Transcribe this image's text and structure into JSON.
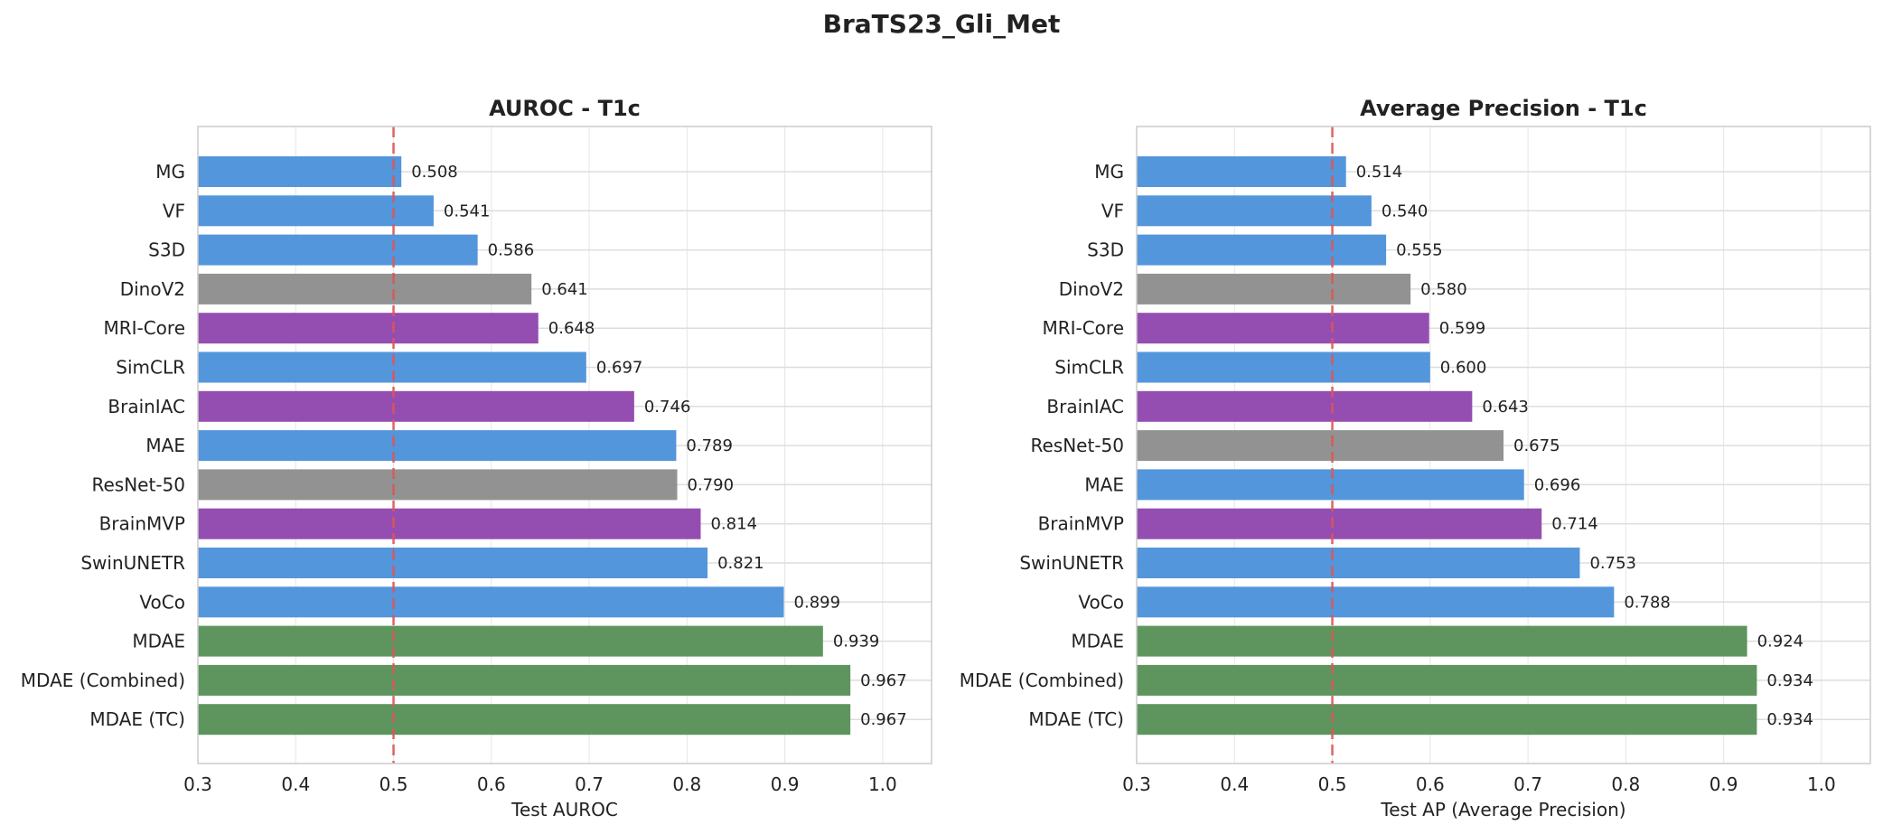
{
  "figure_title": "BraTS23_Gli_Met",
  "colors": {
    "blue": "#4a90d9",
    "gray": "#8c8c8c",
    "purple": "#8e44ad",
    "green": "#558f55",
    "reference_line": "#e05555"
  },
  "chart_data": [
    {
      "type": "bar",
      "orientation": "horizontal",
      "title": "AUROC - T1c",
      "xlabel": "Test AUROC",
      "xlim": [
        0.3,
        1.05
      ],
      "xticks": [
        "0.3",
        "0.4",
        "0.5",
        "0.6",
        "0.7",
        "0.8",
        "0.9",
        "1.0"
      ],
      "reference_line": 0.5,
      "grid": true,
      "bars": [
        {
          "label": "MG",
          "value": 0.508,
          "value_label": "0.508",
          "color": "blue"
        },
        {
          "label": "VF",
          "value": 0.541,
          "value_label": "0.541",
          "color": "blue"
        },
        {
          "label": "S3D",
          "value": 0.586,
          "value_label": "0.586",
          "color": "blue"
        },
        {
          "label": "DinoV2",
          "value": 0.641,
          "value_label": "0.641",
          "color": "gray"
        },
        {
          "label": "MRI-Core",
          "value": 0.648,
          "value_label": "0.648",
          "color": "purple"
        },
        {
          "label": "SimCLR",
          "value": 0.697,
          "value_label": "0.697",
          "color": "blue"
        },
        {
          "label": "BrainIAC",
          "value": 0.746,
          "value_label": "0.746",
          "color": "purple"
        },
        {
          "label": "MAE",
          "value": 0.789,
          "value_label": "0.789",
          "color": "blue"
        },
        {
          "label": "ResNet-50",
          "value": 0.79,
          "value_label": "0.790",
          "color": "gray"
        },
        {
          "label": "BrainMVP",
          "value": 0.814,
          "value_label": "0.814",
          "color": "purple"
        },
        {
          "label": "SwinUNETR",
          "value": 0.821,
          "value_label": "0.821",
          "color": "blue"
        },
        {
          "label": "VoCo",
          "value": 0.899,
          "value_label": "0.899",
          "color": "blue"
        },
        {
          "label": "MDAE",
          "value": 0.939,
          "value_label": "0.939",
          "color": "green"
        },
        {
          "label": "MDAE (Combined)",
          "value": 0.967,
          "value_label": "0.967",
          "color": "green"
        },
        {
          "label": "MDAE (TC)",
          "value": 0.967,
          "value_label": "0.967",
          "color": "green"
        }
      ]
    },
    {
      "type": "bar",
      "orientation": "horizontal",
      "title": "Average Precision - T1c",
      "xlabel": "Test AP (Average Precision)",
      "xlim": [
        0.3,
        1.05
      ],
      "xticks": [
        "0.3",
        "0.4",
        "0.5",
        "0.6",
        "0.7",
        "0.8",
        "0.9",
        "1.0"
      ],
      "reference_line": 0.5,
      "grid": true,
      "bars": [
        {
          "label": "MG",
          "value": 0.514,
          "value_label": "0.514",
          "color": "blue"
        },
        {
          "label": "VF",
          "value": 0.54,
          "value_label": "0.540",
          "color": "blue"
        },
        {
          "label": "S3D",
          "value": 0.555,
          "value_label": "0.555",
          "color": "blue"
        },
        {
          "label": "DinoV2",
          "value": 0.58,
          "value_label": "0.580",
          "color": "gray"
        },
        {
          "label": "MRI-Core",
          "value": 0.599,
          "value_label": "0.599",
          "color": "purple"
        },
        {
          "label": "SimCLR",
          "value": 0.6,
          "value_label": "0.600",
          "color": "blue"
        },
        {
          "label": "BrainIAC",
          "value": 0.643,
          "value_label": "0.643",
          "color": "purple"
        },
        {
          "label": "ResNet-50",
          "value": 0.675,
          "value_label": "0.675",
          "color": "gray"
        },
        {
          "label": "MAE",
          "value": 0.696,
          "value_label": "0.696",
          "color": "blue"
        },
        {
          "label": "BrainMVP",
          "value": 0.714,
          "value_label": "0.714",
          "color": "purple"
        },
        {
          "label": "SwinUNETR",
          "value": 0.753,
          "value_label": "0.753",
          "color": "blue"
        },
        {
          "label": "VoCo",
          "value": 0.788,
          "value_label": "0.788",
          "color": "blue"
        },
        {
          "label": "MDAE",
          "value": 0.924,
          "value_label": "0.924",
          "color": "green"
        },
        {
          "label": "MDAE (Combined)",
          "value": 0.934,
          "value_label": "0.934",
          "color": "green"
        },
        {
          "label": "MDAE (TC)",
          "value": 0.934,
          "value_label": "0.934",
          "color": "green"
        }
      ]
    }
  ]
}
